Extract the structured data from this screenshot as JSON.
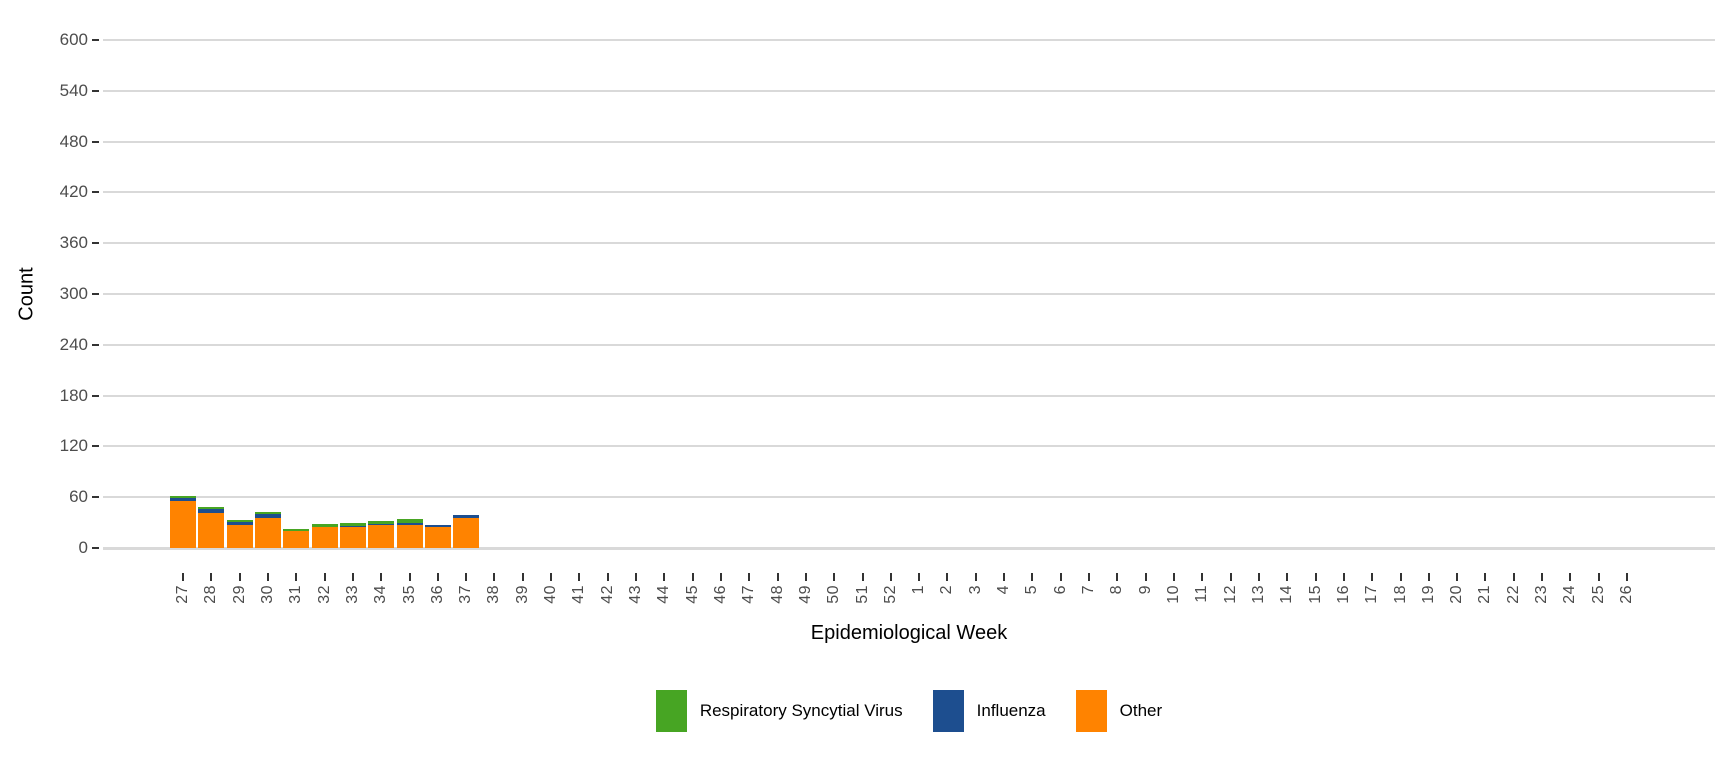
{
  "chart_data": {
    "type": "bar",
    "stacked": true,
    "title": "",
    "xlabel": "Epidemiological Week",
    "ylabel": "Count",
    "ylim": [
      0,
      600
    ],
    "ytick_step": 60,
    "grid": "horizontal",
    "gridline_color": "#D9D9D9",
    "tick_label_color": "#4D4D4D",
    "legend_position": "bottom",
    "categories": [
      "27",
      "28",
      "29",
      "30",
      "31",
      "32",
      "33",
      "34",
      "35",
      "36",
      "37",
      "38",
      "39",
      "40",
      "41",
      "42",
      "43",
      "44",
      "45",
      "46",
      "47",
      "48",
      "49",
      "50",
      "51",
      "52",
      "1",
      "2",
      "3",
      "4",
      "5",
      "6",
      "7",
      "8",
      "9",
      "10",
      "11",
      "12",
      "13",
      "14",
      "15",
      "16",
      "17",
      "18",
      "19",
      "20",
      "21",
      "22",
      "23",
      "24",
      "25",
      "26"
    ],
    "series": [
      {
        "name": "Other",
        "color": "#FF8300",
        "values": [
          55,
          41,
          27,
          35,
          20,
          25,
          25,
          27,
          27,
          25,
          35,
          0,
          0,
          0,
          0,
          0,
          0,
          0,
          0,
          0,
          0,
          0,
          0,
          0,
          0,
          0,
          0,
          0,
          0,
          0,
          0,
          0,
          0,
          0,
          0,
          0,
          0,
          0,
          0,
          0,
          0,
          0,
          0,
          0,
          0,
          0,
          0,
          0,
          0,
          0,
          0,
          0
        ]
      },
      {
        "name": "Influenza",
        "color": "#1D4E8F",
        "values": [
          4,
          5,
          4,
          5,
          0,
          0,
          1,
          1,
          2,
          2,
          4,
          0,
          0,
          0,
          0,
          0,
          0,
          0,
          0,
          0,
          0,
          0,
          0,
          0,
          0,
          0,
          0,
          0,
          0,
          0,
          0,
          0,
          0,
          0,
          0,
          0,
          0,
          0,
          0,
          0,
          0,
          0,
          0,
          0,
          0,
          0,
          0,
          0,
          0,
          0,
          0,
          0
        ]
      },
      {
        "name": "Respiratory Syncytial Virus",
        "color": "#47A523",
        "values": [
          2,
          2,
          2,
          3,
          3,
          3,
          4,
          4,
          5,
          0,
          0,
          0,
          0,
          0,
          0,
          0,
          0,
          0,
          0,
          0,
          0,
          0,
          0,
          0,
          0,
          0,
          0,
          0,
          0,
          0,
          0,
          0,
          0,
          0,
          0,
          0,
          0,
          0,
          0,
          0,
          0,
          0,
          0,
          0,
          0,
          0,
          0,
          0,
          0,
          0,
          0,
          0
        ]
      }
    ],
    "legend": [
      {
        "label": "Respiratory Syncytial Virus",
        "color": "#47A523"
      },
      {
        "label": "Influenza",
        "color": "#1D4E8F"
      },
      {
        "label": "Other",
        "color": "#FF8300"
      }
    ]
  }
}
